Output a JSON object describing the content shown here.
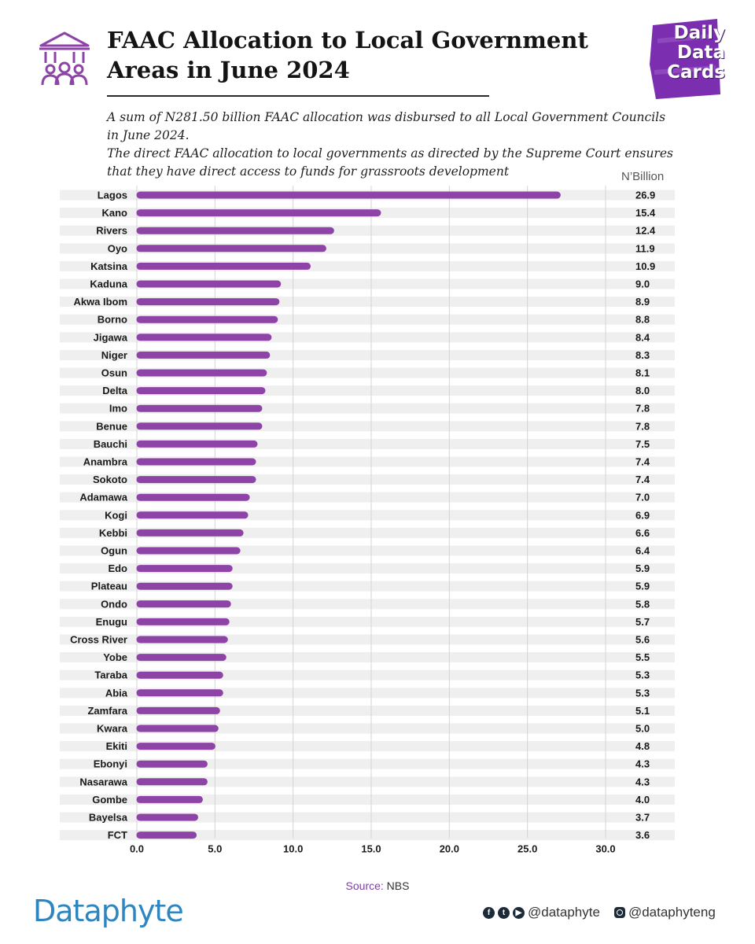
{
  "header": {
    "title_line1": "FAAC Allocation to Local Government",
    "title_line2": "Areas in June 2024",
    "icon": "government-building-people-icon"
  },
  "logo": {
    "line1": "Daily",
    "line2": "Data",
    "line3": "Cards",
    "color": "#7b2fb0"
  },
  "subtitle": {
    "p1": "A sum of N281.50 billion FAAC allocation was disbursed to all Local Government Councils in June 2024.",
    "p2": "The direct FAAC allocation to local governments as directed by the Supreme Court ensures that they have direct access to funds for grassroots development"
  },
  "chart_data": {
    "type": "bar",
    "orientation": "horizontal",
    "unit_label": "N’Billion",
    "categories": [
      "Lagos",
      "Kano",
      "Rivers",
      "Oyo",
      "Katsina",
      "Kaduna",
      "Akwa Ibom",
      "Borno",
      "Jigawa",
      "Niger",
      "Osun",
      "Delta",
      "Imo",
      "Benue",
      "Bauchi",
      "Anambra",
      "Sokoto",
      "Adamawa",
      "Kogi",
      "Kebbi",
      "Ogun",
      "Edo",
      "Plateau",
      "Ondo",
      "Enugu",
      "Cross River",
      "Yobe",
      "Taraba",
      "Abia",
      "Zamfara",
      "Kwara",
      "Ekiti",
      "Ebonyi",
      "Nasarawa",
      "Gombe",
      "Bayelsa",
      "FCT"
    ],
    "values": [
      26.9,
      15.4,
      12.4,
      11.9,
      10.9,
      9.0,
      8.9,
      8.8,
      8.4,
      8.3,
      8.1,
      8.0,
      7.8,
      7.8,
      7.5,
      7.4,
      7.4,
      7.0,
      6.9,
      6.6,
      6.4,
      5.9,
      5.9,
      5.8,
      5.7,
      5.6,
      5.5,
      5.3,
      5.3,
      5.1,
      5.0,
      4.8,
      4.3,
      4.3,
      4.0,
      3.7,
      3.6
    ],
    "value_labels": [
      "26.9",
      "15.4",
      "12.4",
      "11.9",
      "10.9",
      "9.0",
      "8.9",
      "8.8",
      "8.4",
      "8.3",
      "8.1",
      "8.0",
      "7.8",
      "7.8",
      "7.5",
      "7.4",
      "7.4",
      "7.0",
      "6.9",
      "6.6",
      "6.4",
      "5.9",
      "5.9",
      "5.8",
      "5.7",
      "5.6",
      "5.5",
      "5.3",
      "5.3",
      "5.1",
      "5.0",
      "4.8",
      "4.3",
      "4.3",
      "4.0",
      "3.7",
      "3.6"
    ],
    "x_ticks": [
      "0.0",
      "5.0",
      "10.0",
      "15.0",
      "20.0",
      "25.0",
      "30.0"
    ],
    "xlim": [
      0,
      34
    ],
    "grid": true,
    "colors": {
      "bar": "#8e44a6",
      "row_band": "#efefef",
      "grid": "#d4d4d4"
    }
  },
  "footer": {
    "source_key": "Source:",
    "source_value": "NBS",
    "brand": "Dataphyte",
    "social_handle_1": "@dataphyte",
    "social_handle_2": "@dataphyteng"
  }
}
